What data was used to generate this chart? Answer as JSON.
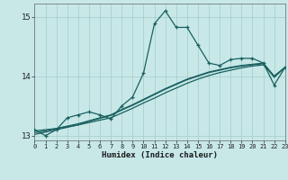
{
  "title": "",
  "xlabel": "Humidex (Indice chaleur)",
  "bg_color": "#c8e8e8",
  "grid_color": "#aacfcf",
  "line_color": "#1a6060",
  "x": [
    0,
    1,
    2,
    3,
    4,
    5,
    6,
    7,
    8,
    9,
    10,
    11,
    12,
    13,
    14,
    15,
    16,
    17,
    18,
    19,
    20,
    21,
    22,
    23
  ],
  "y_main": [
    13.1,
    13.0,
    13.1,
    13.3,
    13.35,
    13.4,
    13.35,
    13.28,
    13.5,
    13.65,
    14.05,
    14.88,
    15.1,
    14.82,
    14.82,
    14.52,
    14.22,
    14.18,
    14.28,
    14.3,
    14.3,
    14.22,
    13.85,
    14.15
  ],
  "y_trend1": [
    13.08,
    13.1,
    13.12,
    13.15,
    13.18,
    13.22,
    13.26,
    13.3,
    13.38,
    13.46,
    13.55,
    13.63,
    13.72,
    13.8,
    13.88,
    13.95,
    14.01,
    14.06,
    14.1,
    14.14,
    14.17,
    14.19,
    14.0,
    14.15
  ],
  "y_trend2": [
    13.05,
    13.08,
    13.12,
    13.16,
    13.2,
    13.25,
    13.3,
    13.35,
    13.44,
    13.52,
    13.61,
    13.7,
    13.79,
    13.87,
    13.95,
    14.01,
    14.07,
    14.11,
    14.15,
    14.18,
    14.2,
    14.22,
    14.0,
    14.15
  ],
  "y_trend3": [
    13.02,
    13.06,
    13.1,
    13.14,
    13.18,
    13.24,
    13.29,
    13.34,
    13.43,
    13.51,
    13.6,
    13.69,
    13.78,
    13.86,
    13.94,
    14.0,
    14.06,
    14.1,
    14.14,
    14.17,
    14.19,
    14.21,
    13.98,
    14.15
  ],
  "xlim": [
    0,
    23
  ],
  "ylim": [
    12.92,
    15.22
  ],
  "yticks": [
    13,
    14,
    15
  ],
  "xticks": [
    0,
    1,
    2,
    3,
    4,
    5,
    6,
    7,
    8,
    9,
    10,
    11,
    12,
    13,
    14,
    15,
    16,
    17,
    18,
    19,
    20,
    21,
    22,
    23
  ]
}
